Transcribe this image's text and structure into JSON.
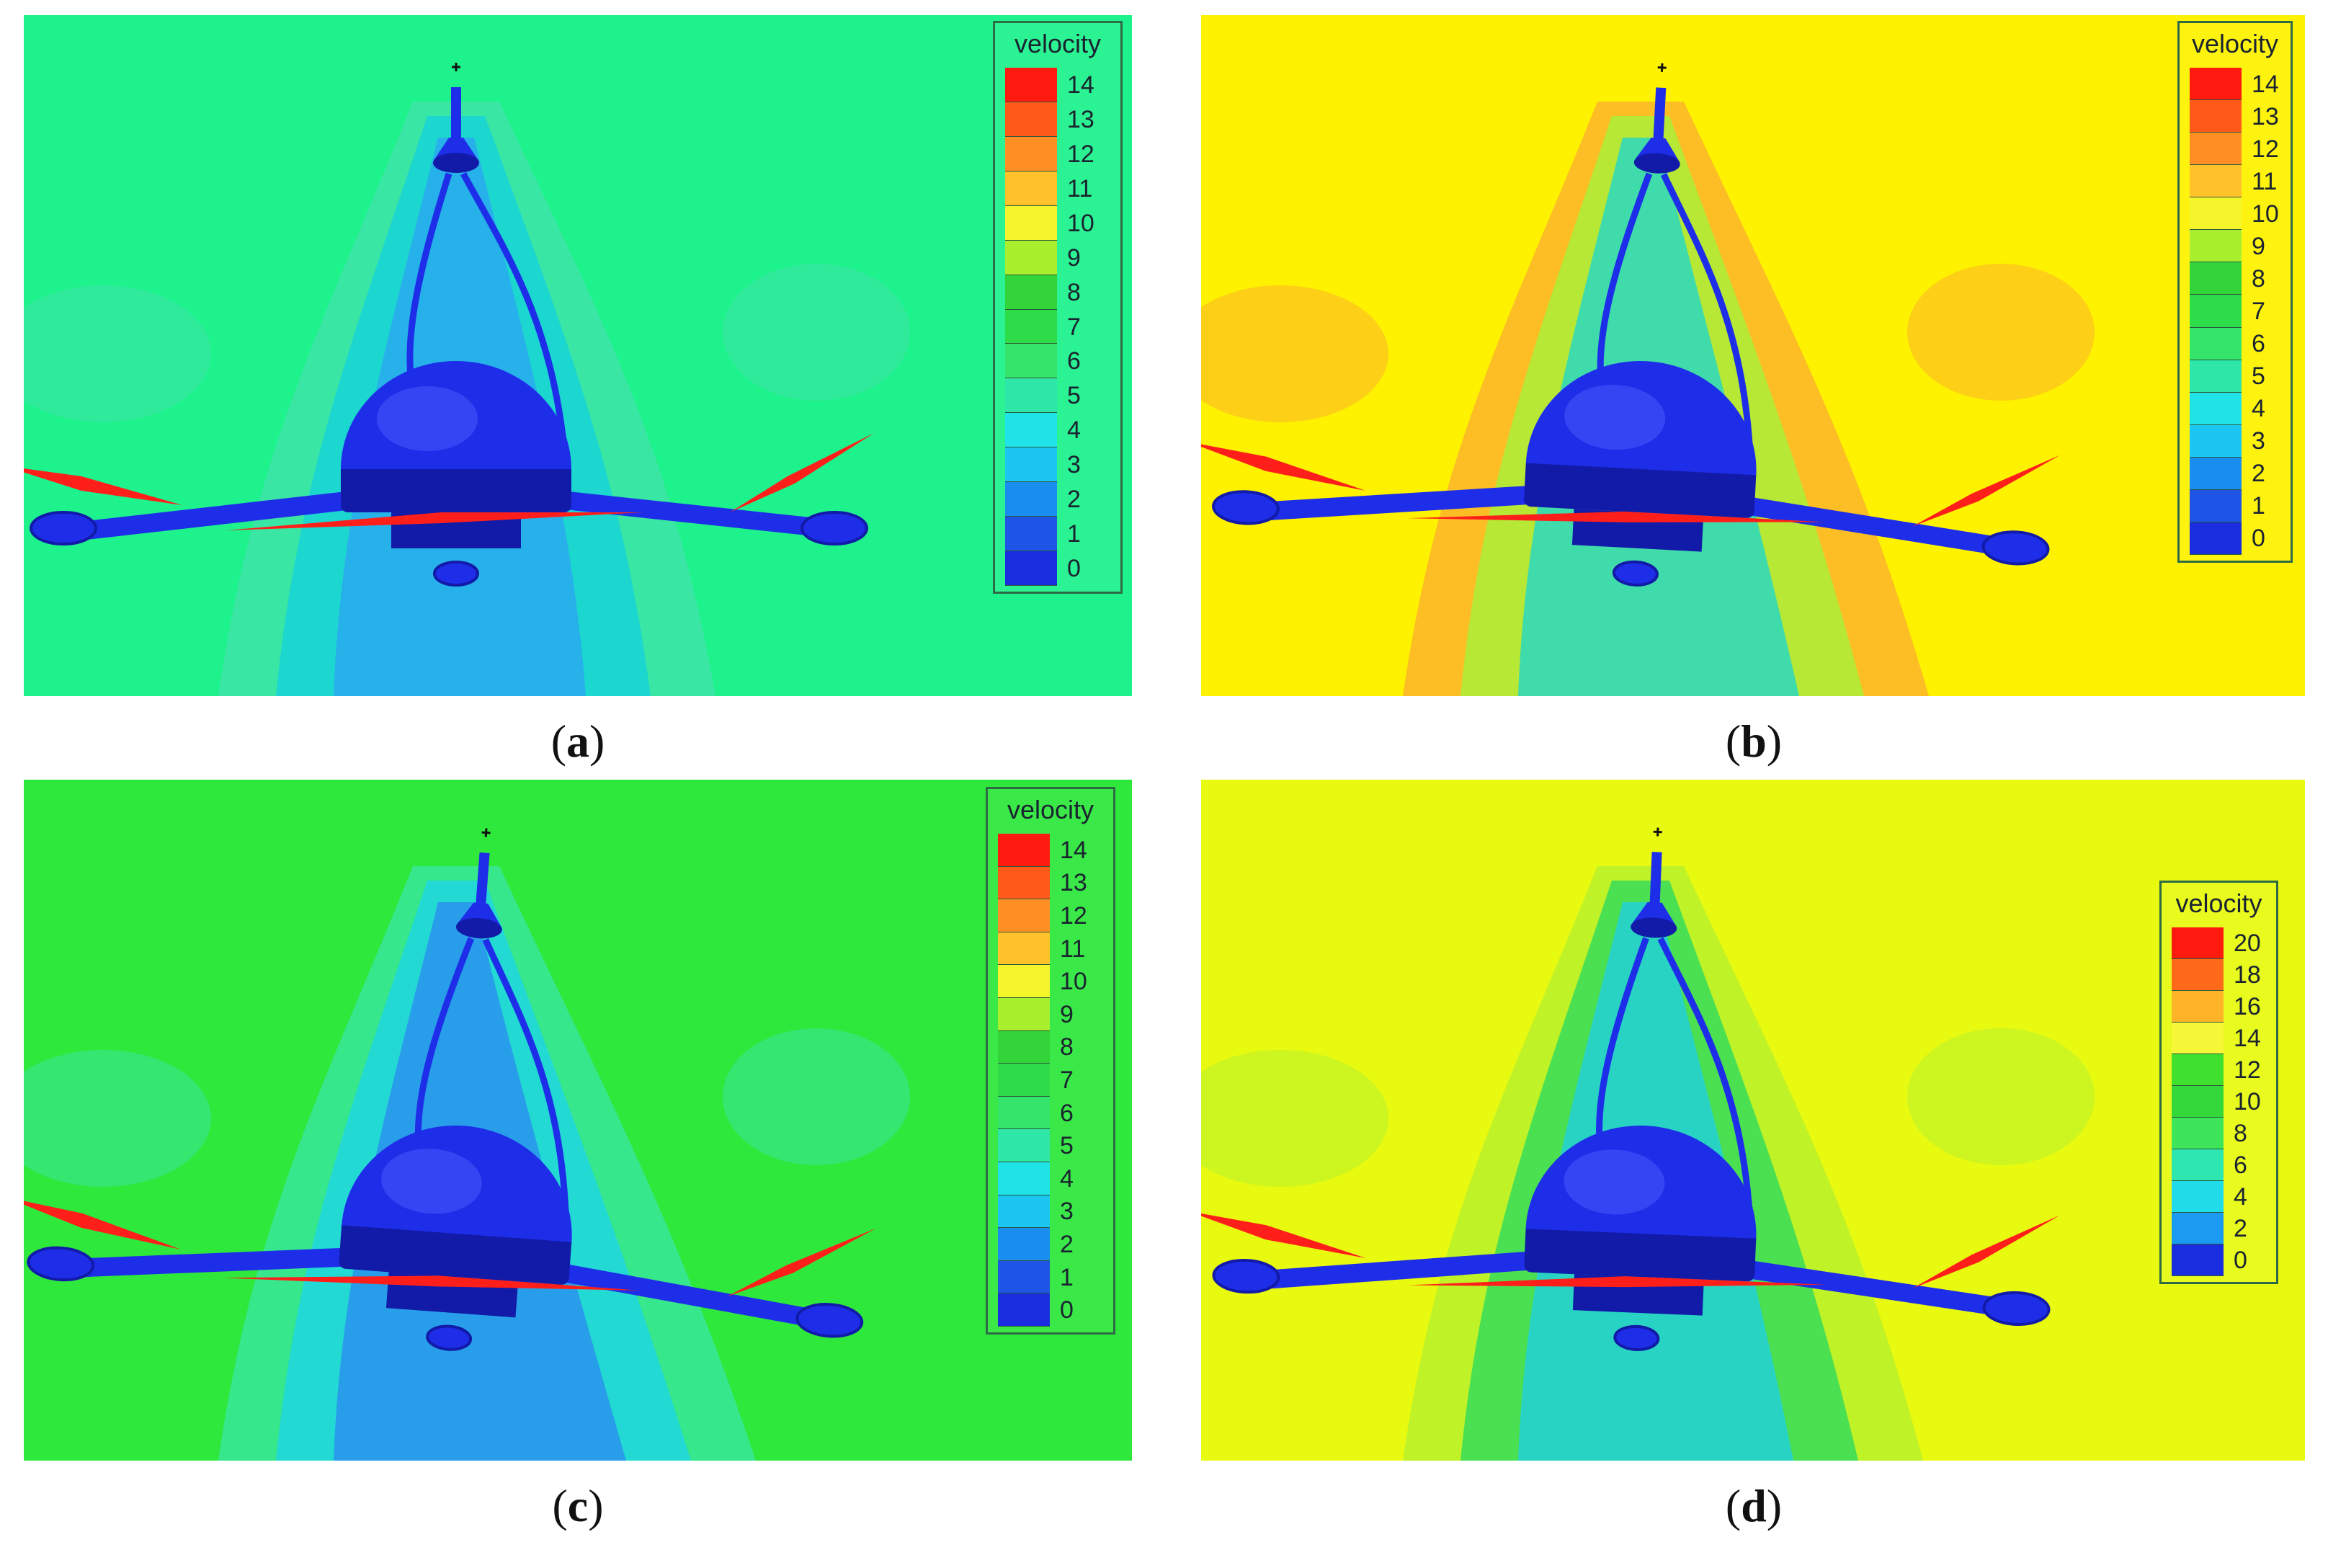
{
  "panels": [
    {
      "id": "a",
      "caption_open": "(",
      "caption_letter": "a",
      "caption_close": ")",
      "background": "#1ef28c",
      "legend": {
        "title": "velocity",
        "labels": [
          "14",
          "13",
          "12",
          "11",
          "10",
          "9",
          "8",
          "7",
          "6",
          "5",
          "4",
          "3",
          "2",
          "1",
          "0"
        ],
        "colors": [
          "#ff1a10",
          "#ff5a1a",
          "#ff8f24",
          "#ffc22a",
          "#f5f52c",
          "#a8f02e",
          "#33d33a",
          "#2edc4a",
          "#35e46a",
          "#2ee6a8",
          "#1fe3e6",
          "#1bc7f2",
          "#1a8ef0",
          "#1f55e6",
          "#1a2ee0"
        ]
      },
      "plumes": [
        {
          "color": "#3fe4a8"
        },
        {
          "color": "#17d2d8"
        },
        {
          "color": "#2aa8f0"
        }
      ]
    },
    {
      "id": "b",
      "caption_open": "(",
      "caption_letter": "b",
      "caption_close": ")",
      "background": "#fef200",
      "legend": {
        "title": "velocity",
        "labels": [
          "14",
          "13",
          "12",
          "11",
          "10",
          "9",
          "8",
          "7",
          "6",
          "5",
          "4",
          "3",
          "2",
          "1",
          "0"
        ],
        "colors": [
          "#ff1a10",
          "#ff5a1a",
          "#ff8f24",
          "#ffc22a",
          "#f5f52c",
          "#a8f02e",
          "#33d33a",
          "#2edc4a",
          "#35e46a",
          "#2ee6a8",
          "#1fe3e6",
          "#1bc7f2",
          "#1a8ef0",
          "#1f55e6",
          "#1a2ee0"
        ]
      },
      "plumes": [
        {
          "color": "#fbb52a"
        },
        {
          "color": "#aaf03a"
        },
        {
          "color": "#21d7c8"
        }
      ]
    },
    {
      "id": "c",
      "caption_open": "(",
      "caption_letter": "c",
      "caption_close": ")",
      "background": "#2ee83c",
      "legend": {
        "title": "velocity",
        "labels": [
          "14",
          "13",
          "12",
          "11",
          "10",
          "9",
          "8",
          "7",
          "6",
          "5",
          "4",
          "3",
          "2",
          "1",
          "0"
        ],
        "colors": [
          "#ff1a10",
          "#ff5a1a",
          "#ff8f24",
          "#ffc22a",
          "#f5f52c",
          "#a8f02e",
          "#33d33a",
          "#2edc4a",
          "#35e46a",
          "#2ee6a8",
          "#1fe3e6",
          "#1bc7f2",
          "#1a8ef0",
          "#1f55e6",
          "#1a2ee0"
        ]
      },
      "plumes": [
        {
          "color": "#38e69a"
        },
        {
          "color": "#1fd6df"
        },
        {
          "color": "#2a8ff0"
        }
      ]
    },
    {
      "id": "d",
      "caption_open": "(",
      "caption_letter": "d",
      "caption_close": ")",
      "background": "#e8fa10",
      "legend": {
        "title": "velocity",
        "labels": [
          "20",
          "18",
          "16",
          "14",
          "12",
          "10",
          "8",
          "6",
          "4",
          "2",
          "0"
        ],
        "colors": [
          "#ff1a10",
          "#ff6a1a",
          "#ffb428",
          "#f7f73a",
          "#40e02e",
          "#34d83a",
          "#3ee45a",
          "#2ee6b0",
          "#1fdce8",
          "#1a9af0",
          "#1a2ee0"
        ]
      },
      "plumes": [
        {
          "color": "#b7f02c"
        },
        {
          "color": "#35dd5a"
        },
        {
          "color": "#1fcfe0"
        }
      ]
    }
  ]
}
